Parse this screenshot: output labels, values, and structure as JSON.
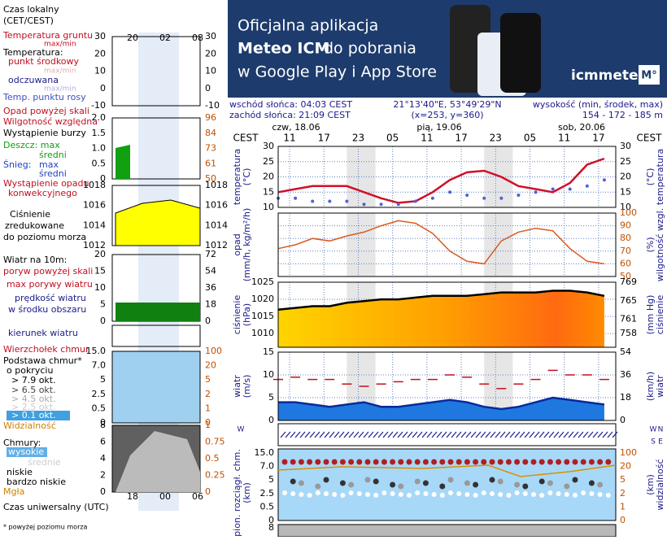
{
  "banner": {
    "line1": "Oficjalna aplikacja",
    "brand": "Meteo ICM",
    "line2_rest": "do pobrania",
    "line3": "w Google Play i App Store",
    "logo": "icmmeteo",
    "logo_badge": "M°"
  },
  "info": {
    "sunrise": "wschód słońca: 04:03 CEST",
    "sunset": "zachód słońca: 21:09 CEST",
    "coords": "21°13'40\"E, 53°49'29\"N",
    "grid_point": "(x=253, y=360)",
    "elevation_label": "wysokość (min, środek, max)",
    "elevation": "154 - 172 - 185 m",
    "days": [
      "czw, 18.06",
      "pią, 19.06",
      "sob, 20.06"
    ],
    "tz": "CEST"
  },
  "legend_column": {
    "texts": [
      "Czas lokalny",
      "(CET/CEST)",
      "Temperatura gruntu",
      "max/min",
      "Temperatura:",
      "punkt środkowy",
      "max/min",
      "odczuwana",
      "max/min",
      "Temp. punktu rosy",
      "Opad powyżej skali",
      "Wilgotność względna",
      "Wystąpienie burzy",
      "Deszcz: max",
      "średni",
      "Śnieg:",
      "max",
      "średni",
      "Wystąpienie opadu",
      "konwekcyjnego",
      "Ciśnienie",
      "zredukowane",
      "do poziomu morza",
      "Wiatr na 10m:",
      "poryw powyżej skali",
      "max porywy wiatru",
      "prędkość wiatru",
      "w środku obszaru",
      "kierunek wiatru",
      "Wierzchołek chmur",
      "Podstawa chmur*",
      "o pokryciu",
      "> 7.9 okt.",
      "> 6.5 okt.",
      "> 4.5 okt.",
      "> 2.5 okt.",
      "> 0.1 okt.",
      "Widzialność",
      "Chmury:",
      "wysokie",
      "średnie",
      "niskie",
      "bardzo niskie",
      "Mgła",
      "Czas uniwersalny (UTC)",
      "* powyżej poziomu morza"
    ],
    "top_times": [
      "20",
      "02",
      "08"
    ],
    "bottom_times": [
      "18",
      "00",
      "06"
    ],
    "panels": [
      {
        "left": [
          "30",
          "20",
          "10",
          "0",
          "-10"
        ],
        "right": [
          "30",
          "20",
          "10",
          "0",
          "-10"
        ]
      },
      {
        "left": [
          "2.0",
          "1.5",
          "1.0",
          "0.5",
          "0"
        ],
        "right": [
          "96",
          "84",
          "73",
          "61",
          "50"
        ]
      },
      {
        "left": [
          "1018",
          "1016",
          "1014",
          "1012"
        ],
        "right": [
          "1018",
          "1016",
          "1014",
          "1012"
        ]
      },
      {
        "left": [
          "20",
          "15",
          "10",
          "5",
          "0"
        ],
        "right": [
          "72",
          "54",
          "36",
          "18",
          "0"
        ]
      },
      {
        "left": [
          "15.0",
          "7.0",
          "5",
          "2.5",
          "0.5",
          "0"
        ],
        "right": [
          "100",
          "20",
          "5",
          "2",
          "1",
          "0"
        ]
      },
      {
        "left": [
          "8",
          "6",
          "4",
          "2",
          "0"
        ],
        "right": [
          "1",
          "0.75",
          "0.5",
          "0.25",
          "0"
        ]
      }
    ]
  },
  "chart_data": [
    {
      "type": "line",
      "y_label": [
        "temperatura",
        "(°C)"
      ],
      "x": [
        9,
        12,
        15,
        18,
        21,
        24,
        27,
        30,
        33,
        36,
        39,
        42,
        45,
        48,
        51,
        54,
        57,
        60,
        63,
        66
      ],
      "xlim": [
        9,
        68
      ],
      "xticks": [
        11,
        17,
        23,
        {
          "value": 29,
          "label": "05"
        },
        {
          "value": 35,
          "label": "11"
        },
        {
          "value": 41,
          "label": "17"
        },
        {
          "value": 47,
          "label": "23"
        },
        {
          "value": 53,
          "label": "05"
        },
        {
          "value": 59,
          "label": "11"
        },
        {
          "value": 65,
          "label": "17"
        }
      ],
      "night_bands": [
        [
          21,
          26
        ],
        [
          45,
          50
        ]
      ],
      "ylim": [
        10,
        30
      ],
      "yticks": [
        10,
        15,
        20,
        25,
        30
      ],
      "series": [
        {
          "name": "Temperatura",
          "color": "#d0102a",
          "style": "line",
          "values": [
            15,
            16,
            17,
            17,
            17,
            15,
            13,
            11.5,
            12,
            15,
            19,
            21.5,
            22,
            20,
            17,
            16,
            15,
            18,
            24,
            26
          ]
        },
        {
          "name": "Temp. punktu rosy",
          "color": "#5060d8",
          "style": "dots",
          "values": [
            13,
            13,
            12,
            12,
            12,
            11,
            11,
            11,
            12,
            13,
            15,
            14,
            13,
            13,
            14,
            15,
            16,
            16,
            17,
            19
          ]
        }
      ]
    },
    {
      "type": "line",
      "y_label": [
        "opad",
        "(mm/h, kg/m²/h)"
      ],
      "y2_label": [
        "wilgotność wzgl.",
        "(%)"
      ],
      "x": [
        9,
        12,
        15,
        18,
        21,
        24,
        27,
        30,
        33,
        36,
        39,
        42,
        45,
        48,
        51,
        54,
        57,
        60,
        63,
        66
      ],
      "xlim": [
        9,
        68
      ],
      "y2lim": [
        50,
        100
      ],
      "y2ticks": [
        50,
        60,
        70,
        80,
        90,
        100
      ],
      "series": [
        {
          "name": "Wilgotność względna",
          "color": "#d85a20",
          "style": "line",
          "axis": "y2",
          "values": [
            72,
            75,
            80,
            78,
            82,
            85,
            90,
            94,
            92,
            84,
            70,
            62,
            60,
            78,
            85,
            88,
            86,
            72,
            62,
            60
          ]
        }
      ]
    },
    {
      "type": "area",
      "y_label": [
        "ciśnienie",
        "(hPa)"
      ],
      "y2_label": [
        "ciśnienie",
        "(mm Hg)"
      ],
      "x": [
        9,
        12,
        15,
        18,
        21,
        24,
        27,
        30,
        33,
        36,
        39,
        42,
        45,
        48,
        51,
        54,
        57,
        60,
        63,
        66
      ],
      "xlim": [
        9,
        68
      ],
      "ylim": [
        1006,
        1025
      ],
      "yticks": [
        1010,
        1015,
        1020,
        1025
      ],
      "y2lim": [
        755,
        769
      ],
      "y2ticks": [
        758,
        761,
        765,
        769
      ],
      "series": [
        {
          "name": "Ciśnienie",
          "color": "#000000",
          "style": "area",
          "values": [
            1017,
            1017.5,
            1018,
            1018,
            1019,
            1019.5,
            1020,
            1020,
            1020.5,
            1021,
            1021,
            1021,
            1021.5,
            1022,
            1022,
            1022,
            1022.5,
            1022.5,
            1022,
            1021
          ]
        }
      ]
    },
    {
      "type": "line",
      "y_label": [
        "wiatr",
        "(m/s)"
      ],
      "y2_label": [
        "wiatr",
        "(km/h)"
      ],
      "x": [
        9,
        12,
        15,
        18,
        21,
        24,
        27,
        30,
        33,
        36,
        39,
        42,
        45,
        48,
        51,
        54,
        57,
        60,
        63,
        66
      ],
      "xlim": [
        9,
        68
      ],
      "ylim": [
        0,
        15
      ],
      "yticks": [
        0,
        5,
        10,
        15
      ],
      "y2lim": [
        0,
        54
      ],
      "y2ticks": [
        0,
        18,
        36,
        54
      ],
      "series": [
        {
          "name": "prędkość wiatru",
          "color": "#0a2a9a",
          "style": "area",
          "values": [
            4,
            4,
            3.5,
            3,
            3.5,
            4,
            3,
            3,
            3.5,
            4,
            4.5,
            4,
            3,
            2.5,
            3,
            4,
            5,
            4.5,
            4,
            3.5
          ]
        },
        {
          "name": "max porywy wiatru",
          "color": "#c01020",
          "style": "ticks",
          "values": [
            9,
            9.5,
            9,
            9,
            8,
            7.5,
            8,
            8.5,
            9,
            9,
            10,
            9.5,
            8,
            7,
            8,
            9,
            11,
            10,
            10,
            9
          ]
        }
      ]
    }
  ],
  "compass": [
    "W",
    "N",
    "S",
    "E"
  ],
  "cloud_panel": {
    "y_label": [
      "pion. rozciągł. chm.",
      "(km)"
    ],
    "y2_label": [
      "widzialność",
      "(km)"
    ],
    "left_ticks": [
      "15.0",
      "7.0",
      "5",
      "2.5",
      "0.5",
      "0"
    ],
    "right_ticks": [
      "100",
      "20",
      "5",
      "2",
      "1",
      "0"
    ],
    "next_tick": "8"
  }
}
